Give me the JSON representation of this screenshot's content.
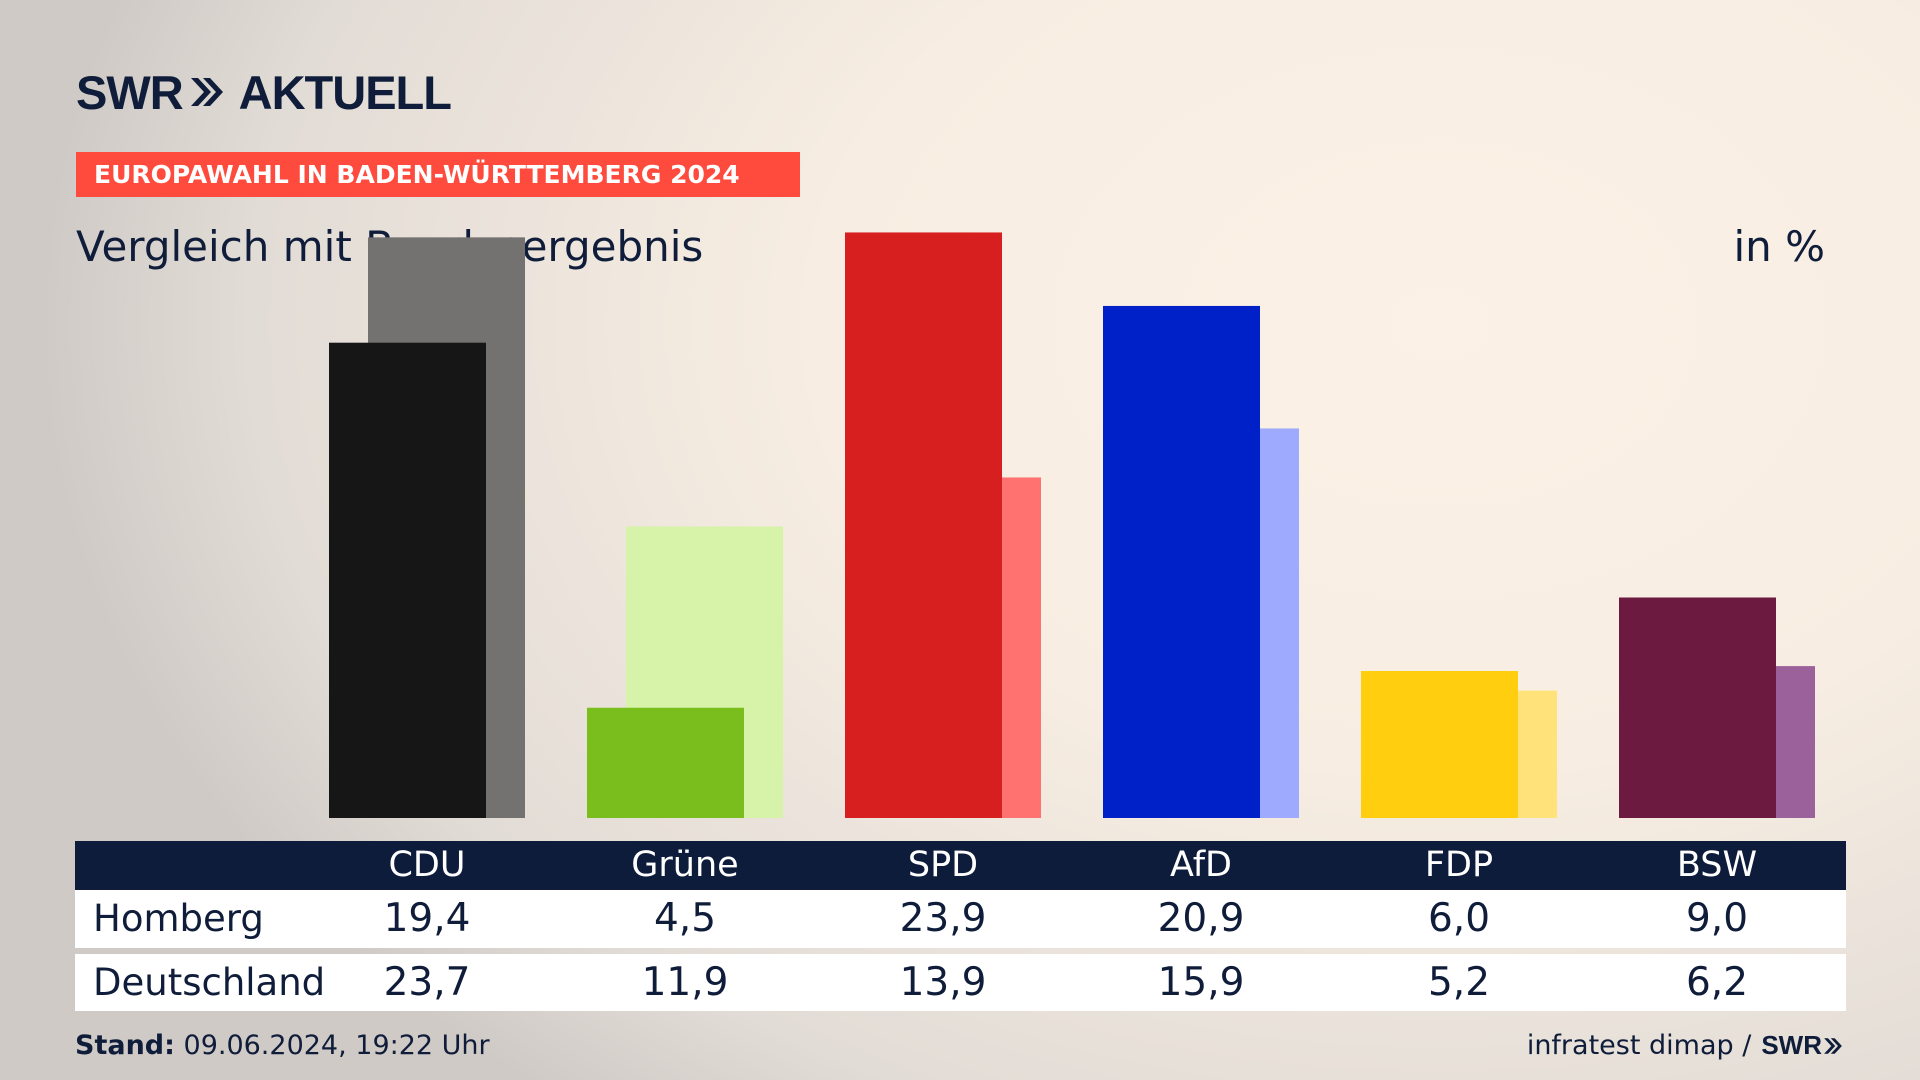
{
  "brand": {
    "name": "SWR",
    "product": "AKTUELL"
  },
  "topic": "EUROPAWAHL IN BADEN-WÜRTTEMBERG 2024",
  "subtitle": "Vergleich mit Bundesergebnis",
  "unit": "in %",
  "chart_data": {
    "type": "bar",
    "categories": [
      "CDU",
      "Grüne",
      "SPD",
      "AfD",
      "FDP",
      "BSW"
    ],
    "series": [
      {
        "name": "Homberg",
        "values": [
          19.4,
          4.5,
          23.9,
          20.9,
          6.0,
          9.0
        ],
        "colors": [
          "#161616",
          "#79be1c",
          "#d71f1f",
          "#0020c8",
          "#ffcf0f",
          "#6c1a40"
        ]
      },
      {
        "name": "Deutschland",
        "values": [
          23.7,
          11.9,
          13.9,
          15.9,
          5.2,
          6.2
        ],
        "colors": [
          "#747270",
          "#d6f3a9",
          "#ff7270",
          "#9eaafd",
          "#ffe279",
          "#9b619b"
        ]
      }
    ],
    "value_labels": {
      "Homberg": [
        "19,4",
        "4,5",
        "23,9",
        "20,9",
        "6,0",
        "9,0"
      ],
      "Deutschland": [
        "23,7",
        "11,9",
        "13,9",
        "15,9",
        "5,2",
        "6,2"
      ]
    },
    "ylim": [
      0,
      25
    ],
    "grid": false,
    "legend": "none"
  },
  "footer": {
    "stand_label": "Stand:",
    "stand_value": "09.06.2024, 19:22 Uhr",
    "source": "infratest dimap /",
    "source_brand": "SWR"
  }
}
